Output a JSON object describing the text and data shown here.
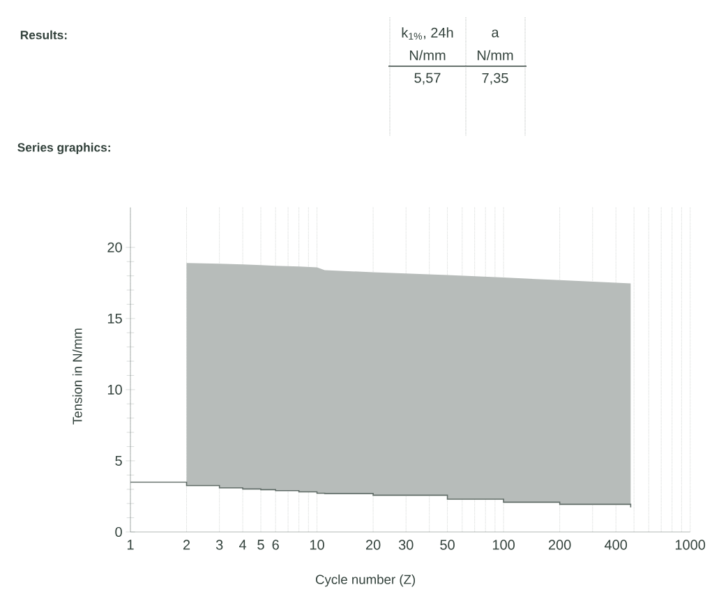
{
  "chart_data": {
    "type": "step",
    "title": "Series graphics:",
    "xlabel": "Cycle number (Z)",
    "ylabel": "Tension in N/mm",
    "annotations": [
      "Results:",
      "k$_{1%}$, 24h",
      "N/mm",
      "a",
      "N/mm",
      "5,57",
      "7,35"
    ],
    "x": [
      1,
      2,
      3,
      4,
      5,
      6,
      8,
      10,
      11,
      20,
      50,
      100,
      200,
      480
    ],
    "series": [
      {
        "color": "#5f6b66",
        "values": [
          3.5,
          3.26,
          3.1,
          3.02,
          2.97,
          2.9,
          2.82,
          2.72,
          2.7,
          2.58,
          2.3,
          2.09,
          1.94,
          1.73
        ],
        "lower": [
          null,
          3.26,
          3.1,
          3.02,
          2.97,
          2.9,
          2.82,
          2.72,
          2.7,
          2.58,
          2.3,
          2.09,
          1.94,
          1.73
        ],
        "upper": [
          null,
          18.9,
          18.85,
          18.8,
          18.75,
          18.7,
          18.65,
          18.6,
          18.4,
          18.25,
          18.06,
          17.88,
          17.7,
          17.47
        ]
      }
    ],
    "log": "x",
    "xlim": [
      1,
      1000
    ],
    "xticks": [
      1,
      2,
      3,
      4,
      5,
      6,
      {
        "value": 7,
        "label": null
      },
      {
        "value": 8,
        "label": null
      },
      {
        "value": 9,
        "label": null
      },
      10,
      20,
      30,
      {
        "value": 40,
        "label": null
      },
      50,
      {
        "value": 60,
        "label": null
      },
      {
        "value": 70,
        "label": null
      },
      {
        "value": 80,
        "label": null
      },
      {
        "value": 90,
        "label": null
      },
      100,
      200,
      {
        "value": 300,
        "label": null
      },
      400,
      {
        "value": 500,
        "label": null
      },
      {
        "value": 600,
        "label": null
      },
      {
        "value": 700,
        "label": null
      },
      {
        "value": 800,
        "label": null
      },
      {
        "value": 900,
        "label": null
      },
      1000
    ],
    "ylim": [
      0,
      22.8
    ],
    "yticks": [
      0,
      5,
      10,
      15,
      20
    ],
    "grid": "x"
  }
}
